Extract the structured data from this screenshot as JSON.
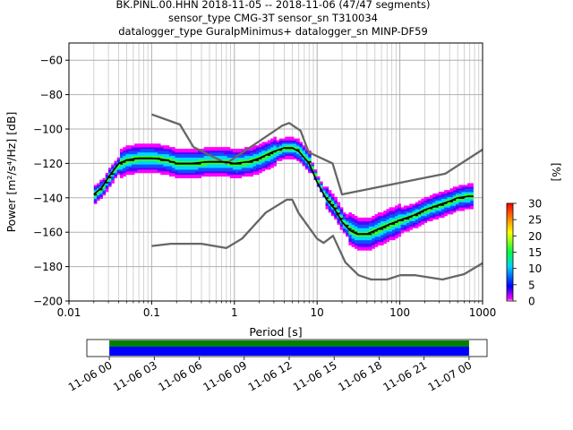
{
  "title_lines": [
    "BK.PINL.00.HHN   2018-11-05 -- 2018-11-06  (47/47 segments)",
    "sensor_type CMG-3T sensor_sn T310034",
    "datalogger_type GuralpMinimus+ datalogger_sn MINP-DF59"
  ],
  "chart_data": {
    "type": "heatmap",
    "xlabel": "Period [s]",
    "ylabel": "Power [m²/s⁴/Hz] [dB]",
    "x_scale": "log",
    "xlim": [
      0.01,
      1000
    ],
    "ylim": [
      -200,
      -50
    ],
    "x_ticks": [
      {
        "value": 0.01,
        "label": "0.01"
      },
      {
        "value": 0.1,
        "label": "0.1"
      },
      {
        "value": 1,
        "label": "1"
      },
      {
        "value": 10,
        "label": "10"
      },
      {
        "value": 100,
        "label": "100"
      },
      {
        "value": 1000,
        "label": "1000"
      }
    ],
    "y_ticks": [
      -60,
      -80,
      -100,
      -120,
      -140,
      -160,
      -180,
      -200
    ],
    "grid": true,
    "mean_curve": {
      "period": [
        0.02,
        0.025,
        0.03,
        0.04,
        0.05,
        0.07,
        0.1,
        0.15,
        0.2,
        0.3,
        0.5,
        0.7,
        1,
        1.5,
        2,
        3,
        4,
        5,
        6,
        8,
        10,
        13,
        16,
        20,
        25,
        30,
        40,
        50,
        70,
        100,
        150,
        200,
        300,
        400,
        500,
        700
      ],
      "power_db": [
        -138,
        -134,
        -128,
        -120,
        -118,
        -117,
        -117,
        -118,
        -120,
        -120,
        -119,
        -119,
        -120,
        -119,
        -117,
        -113,
        -111,
        -111,
        -113,
        -120,
        -131,
        -141,
        -146,
        -154,
        -159,
        -161,
        -161,
        -159,
        -156,
        -153,
        -150,
        -147,
        -144,
        -142,
        -140,
        -139
      ]
    },
    "nhnm": {
      "period": [
        0.1,
        0.22,
        0.32,
        0.8,
        3.8,
        4.6,
        6.3,
        7.9,
        15.4,
        20,
        354.8,
        1000
      ],
      "power_db": [
        -91.5,
        -97.4,
        -110.5,
        -120,
        -98,
        -96.5,
        -101,
        -113.5,
        -120,
        -138,
        -126,
        -112
      ]
    },
    "nlnm": {
      "period": [
        0.1,
        0.17,
        0.4,
        0.8,
        1.24,
        2.4,
        4.3,
        5,
        6,
        10,
        12,
        15.6,
        21.9,
        31.6,
        45,
        70,
        101,
        154,
        328,
        600,
        1000
      ],
      "power_db": [
        -168,
        -166.7,
        -166.7,
        -169.2,
        -163.7,
        -148.6,
        -141.1,
        -141.1,
        -149,
        -163.8,
        -166.2,
        -162.1,
        -177.5,
        -185,
        -187.5,
        -187.5,
        -185,
        -185,
        -187.5,
        -184.4,
        -178
      ]
    },
    "colorbar": {
      "label": "[%]",
      "ticks": [
        0,
        5,
        10,
        15,
        20,
        25,
        30
      ],
      "range": [
        0,
        30
      ]
    },
    "timeline": {
      "tick_labels": [
        "11-06 00",
        "11-06 03",
        "11-06 06",
        "11-06 09",
        "11-06 12",
        "11-06 15",
        "11-06 18",
        "11-06 21",
        "11-07 00"
      ],
      "data_start_hour": 0,
      "data_end_hour": 24,
      "axis_start_hour": -1.5,
      "axis_end_hour": 25.2,
      "colors": {
        "top": "#008000",
        "bottom": "#0000ff"
      }
    }
  }
}
